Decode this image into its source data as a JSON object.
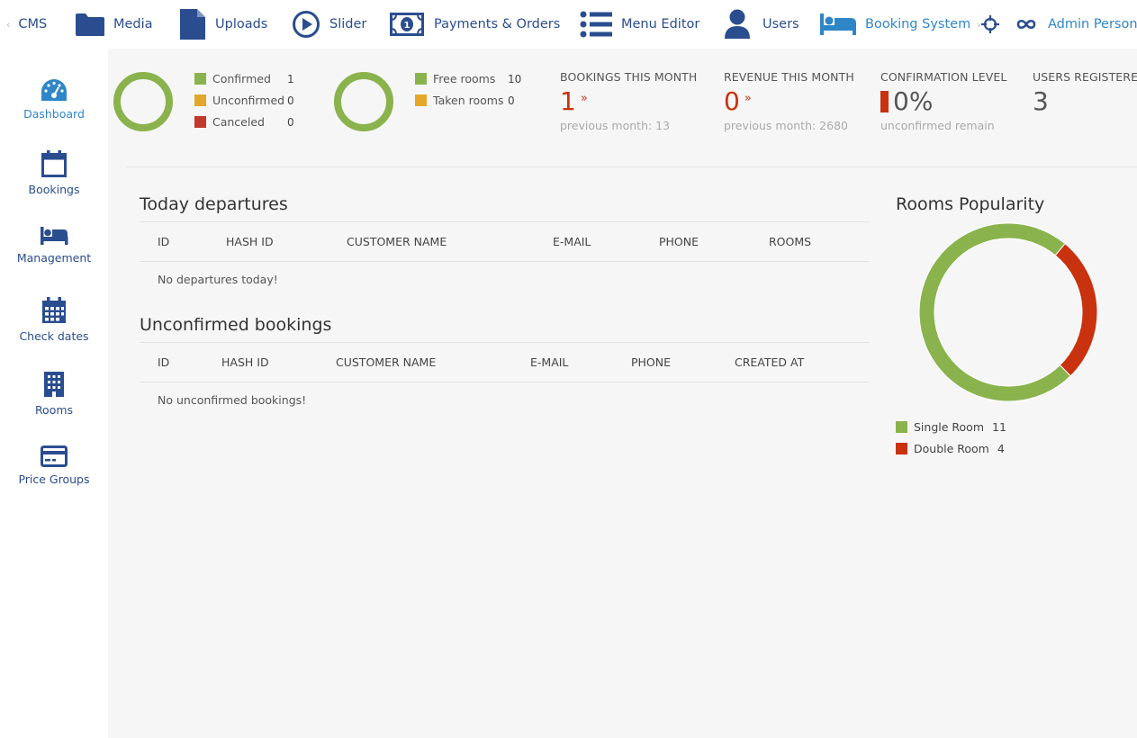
{
  "topnav": {
    "items": [
      {
        "label": "CMS",
        "icon": "cms-back-arrow"
      },
      {
        "label": "Media",
        "icon": "folder-icon"
      },
      {
        "label": "Uploads",
        "icon": "file-icon"
      },
      {
        "label": "Slider",
        "icon": "play-circle-icon"
      },
      {
        "label": "Payments & Orders",
        "icon": "money-icon"
      },
      {
        "label": "Menu Editor",
        "icon": "list-icon"
      },
      {
        "label": "Users",
        "icon": "user-icon"
      },
      {
        "label": "Booking System",
        "icon": "bed-icon",
        "active": true
      },
      {
        "label": "",
        "icon": "crosshair-icon"
      },
      {
        "label": "Admin Person",
        "icon": "infinity-icon"
      }
    ]
  },
  "sidebar": {
    "items": [
      {
        "label": "Dashboard",
        "icon": "dashboard-icon",
        "active": true
      },
      {
        "label": "Bookings",
        "icon": "calendar-icon"
      },
      {
        "label": "Management",
        "icon": "bed-icon"
      },
      {
        "label": "Check dates",
        "icon": "calendar-grid-icon"
      },
      {
        "label": "Rooms",
        "icon": "building-icon"
      },
      {
        "label": "Price Groups",
        "icon": "credit-card-icon"
      }
    ]
  },
  "stats": {
    "booking_status": [
      {
        "label": "Confirmed",
        "value": "1",
        "color": "#8ab34e"
      },
      {
        "label": "Unconfirmed",
        "value": "0",
        "color": "#e3a829"
      },
      {
        "label": "Canceled",
        "value": "0",
        "color": "#c0392b"
      }
    ],
    "room_status": [
      {
        "label": "Free rooms",
        "value": "10",
        "color": "#8ab34e"
      },
      {
        "label": "Taken rooms",
        "value": "0",
        "color": "#e3a829"
      }
    ],
    "kpis": {
      "bookings_title": "BOOKINGS THIS MONTH",
      "bookings_value": "1",
      "bookings_sub": "previous month: 13",
      "revenue_title": "REVENUE THIS MONTH",
      "revenue_value": "0",
      "revenue_sub": "previous month: 2680",
      "confirm_title": "CONFIRMATION LEVEL",
      "confirm_value": "0%",
      "confirm_sub": "unconfirmed remain",
      "users_title": "USERS REGISTERED",
      "users_value": "3"
    }
  },
  "departures": {
    "title": "Today departures",
    "columns": [
      "ID",
      "HASH ID",
      "CUSTOMER NAME",
      "E-MAIL",
      "PHONE",
      "ROOMS"
    ],
    "empty": "No departures today!"
  },
  "unconfirmed": {
    "title": "Unconfirmed bookings",
    "columns": [
      "ID",
      "HASH ID",
      "CUSTOMER NAME",
      "E-MAIL",
      "PHONE",
      "CREATED AT"
    ],
    "empty": "No unconfirmed bookings!"
  },
  "popularity": {
    "title": "Rooms Popularity",
    "rooms": [
      {
        "label": "Single Room",
        "value": 11,
        "value_text": "11",
        "color": "#8ab34e"
      },
      {
        "label": "Double Room",
        "value": 4,
        "value_text": "4",
        "color": "#c9320e"
      }
    ]
  },
  "colors": {
    "nav": "#2a4d8f",
    "active": "#2e86c8",
    "green": "#8ab34e",
    "orange": "#e3a829",
    "red": "#c9320e"
  }
}
